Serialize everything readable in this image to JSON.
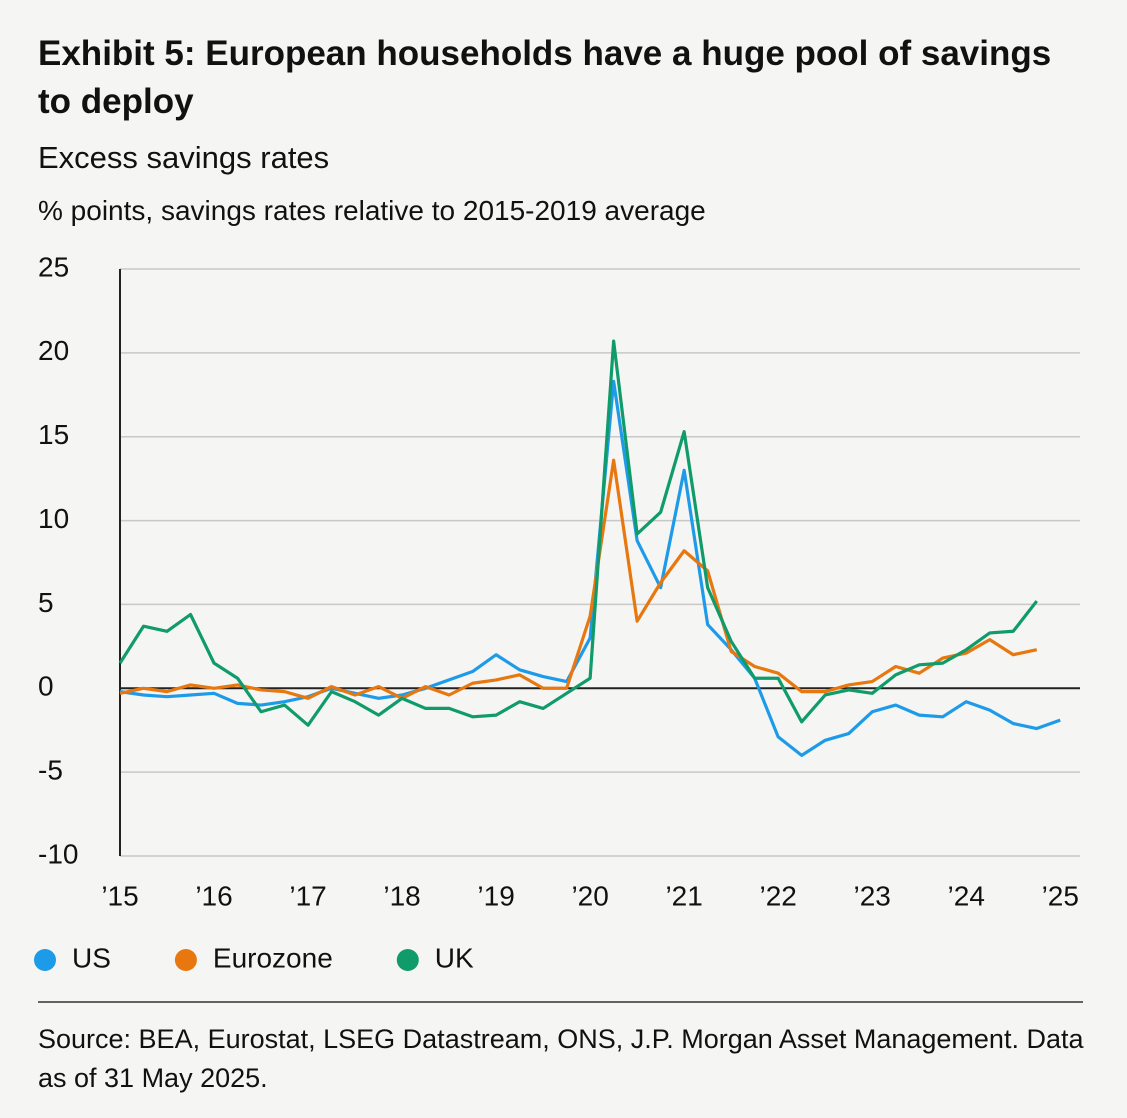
{
  "chart_data": {
    "type": "line",
    "title": "Exhibit 5: European households have a huge pool of savings to deploy",
    "subtitle": "Excess savings rates",
    "y_label": "% points, savings rates relative to 2015-2019 average",
    "source": "Source: BEA, Eurostat, LSEG Datastream, ONS, J.P. Morgan Asset Management. Data as of 31 May 2025.",
    "x": [
      2015,
      2015.25,
      2015.5,
      2015.75,
      2016,
      2016.25,
      2016.5,
      2016.75,
      2017,
      2017.25,
      2017.5,
      2017.75,
      2018,
      2018.25,
      2018.5,
      2018.75,
      2019,
      2019.25,
      2019.5,
      2019.75,
      2020,
      2020.25,
      2020.5,
      2020.75,
      2021,
      2021.25,
      2021.5,
      2021.75,
      2022,
      2022.25,
      2022.5,
      2022.75,
      2023,
      2023.25,
      2023.5,
      2023.75,
      2024,
      2024.25,
      2024.5,
      2024.75,
      2025
    ],
    "series": [
      {
        "name": "US",
        "color": "#1e9be8",
        "values": [
          -0.2,
          -0.4,
          -0.5,
          -0.4,
          -0.3,
          -0.9,
          -1.0,
          -0.8,
          -0.5,
          0.0,
          -0.3,
          -0.6,
          -0.4,
          0.0,
          0.5,
          1.0,
          2.0,
          1.1,
          0.7,
          0.4,
          3.0,
          18.3,
          8.8,
          6.0,
          13.0,
          3.8,
          2.3,
          0.6,
          -2.9,
          -4.0,
          -3.1,
          -2.7,
          -1.4,
          -1.0,
          -1.6,
          -1.7,
          -0.8,
          -1.3,
          -2.1,
          -2.4,
          -1.9
        ]
      },
      {
        "name": "Eurozone",
        "color": "#e8770f",
        "values": [
          -0.3,
          0.0,
          -0.2,
          0.2,
          0.0,
          0.2,
          -0.1,
          -0.2,
          -0.6,
          0.1,
          -0.4,
          0.1,
          -0.6,
          0.1,
          -0.4,
          0.3,
          0.5,
          0.8,
          0.0,
          0.0,
          4.3,
          13.6,
          4.0,
          6.3,
          8.2,
          7.0,
          2.2,
          1.3,
          0.9,
          -0.2,
          -0.2,
          0.2,
          0.4,
          1.3,
          0.9,
          1.8,
          2.1,
          2.9,
          2.0,
          2.3,
          null
        ]
      },
      {
        "name": "UK",
        "color": "#0f9b6a",
        "values": [
          1.5,
          3.7,
          3.4,
          4.4,
          1.5,
          0.6,
          -1.4,
          -1.0,
          -2.2,
          -0.2,
          -0.8,
          -1.6,
          -0.6,
          -1.2,
          -1.2,
          -1.7,
          -1.6,
          -0.8,
          -1.2,
          -0.3,
          0.6,
          20.7,
          9.2,
          10.5,
          15.3,
          6.0,
          2.8,
          0.6,
          0.6,
          -2.0,
          -0.4,
          -0.1,
          -0.3,
          0.8,
          1.4,
          1.5,
          2.3,
          3.3,
          3.4,
          5.2,
          null
        ]
      }
    ],
    "xlim": [
      2015,
      2025.21
    ],
    "xticks": [
      {
        "value": 2015,
        "label": "’15"
      },
      {
        "value": 2016,
        "label": "’16"
      },
      {
        "value": 2017,
        "label": "’17"
      },
      {
        "value": 2018,
        "label": "’18"
      },
      {
        "value": 2019,
        "label": "’19"
      },
      {
        "value": 2020,
        "label": "’20"
      },
      {
        "value": 2021,
        "label": "’21"
      },
      {
        "value": 2022,
        "label": "’22"
      },
      {
        "value": 2023,
        "label": "’23"
      },
      {
        "value": 2024,
        "label": "’24"
      },
      {
        "value": 2025,
        "label": "’25"
      }
    ],
    "ylim": [
      -10,
      25
    ],
    "yticks": [
      -10,
      -5,
      0,
      5,
      10,
      15,
      20,
      25
    ],
    "grid": true
  }
}
